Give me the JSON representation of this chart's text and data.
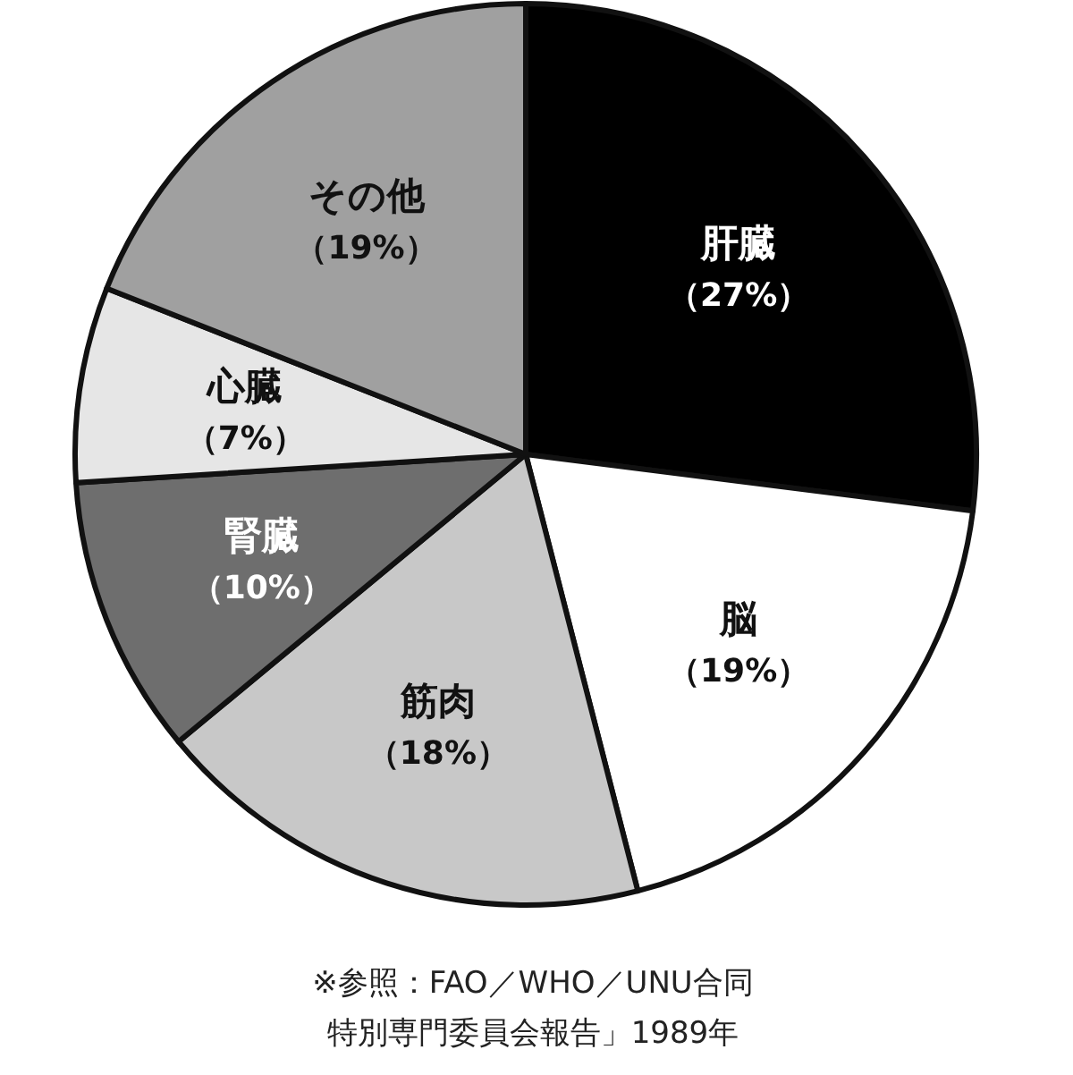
{
  "chart_data": {
    "type": "pie",
    "categories": [
      "肝臓",
      "脳",
      "筋肉",
      "腎臓",
      "心臓",
      "その他"
    ],
    "values": [
      27,
      19,
      18,
      10,
      7,
      19
    ],
    "colors": [
      "#000000",
      "#ffffff",
      "#c8c8c8",
      "#6e6e6e",
      "#e6e6e6",
      "#a0a0a0"
    ],
    "value_labels": [
      "（27%）",
      "（19%）",
      "（18%）",
      "（10%）",
      "（7%）",
      "（19%）"
    ],
    "annotations": [
      "※参照：FAO／WHO／UNU合同特別専門委員会報告」1989年"
    ]
  }
}
